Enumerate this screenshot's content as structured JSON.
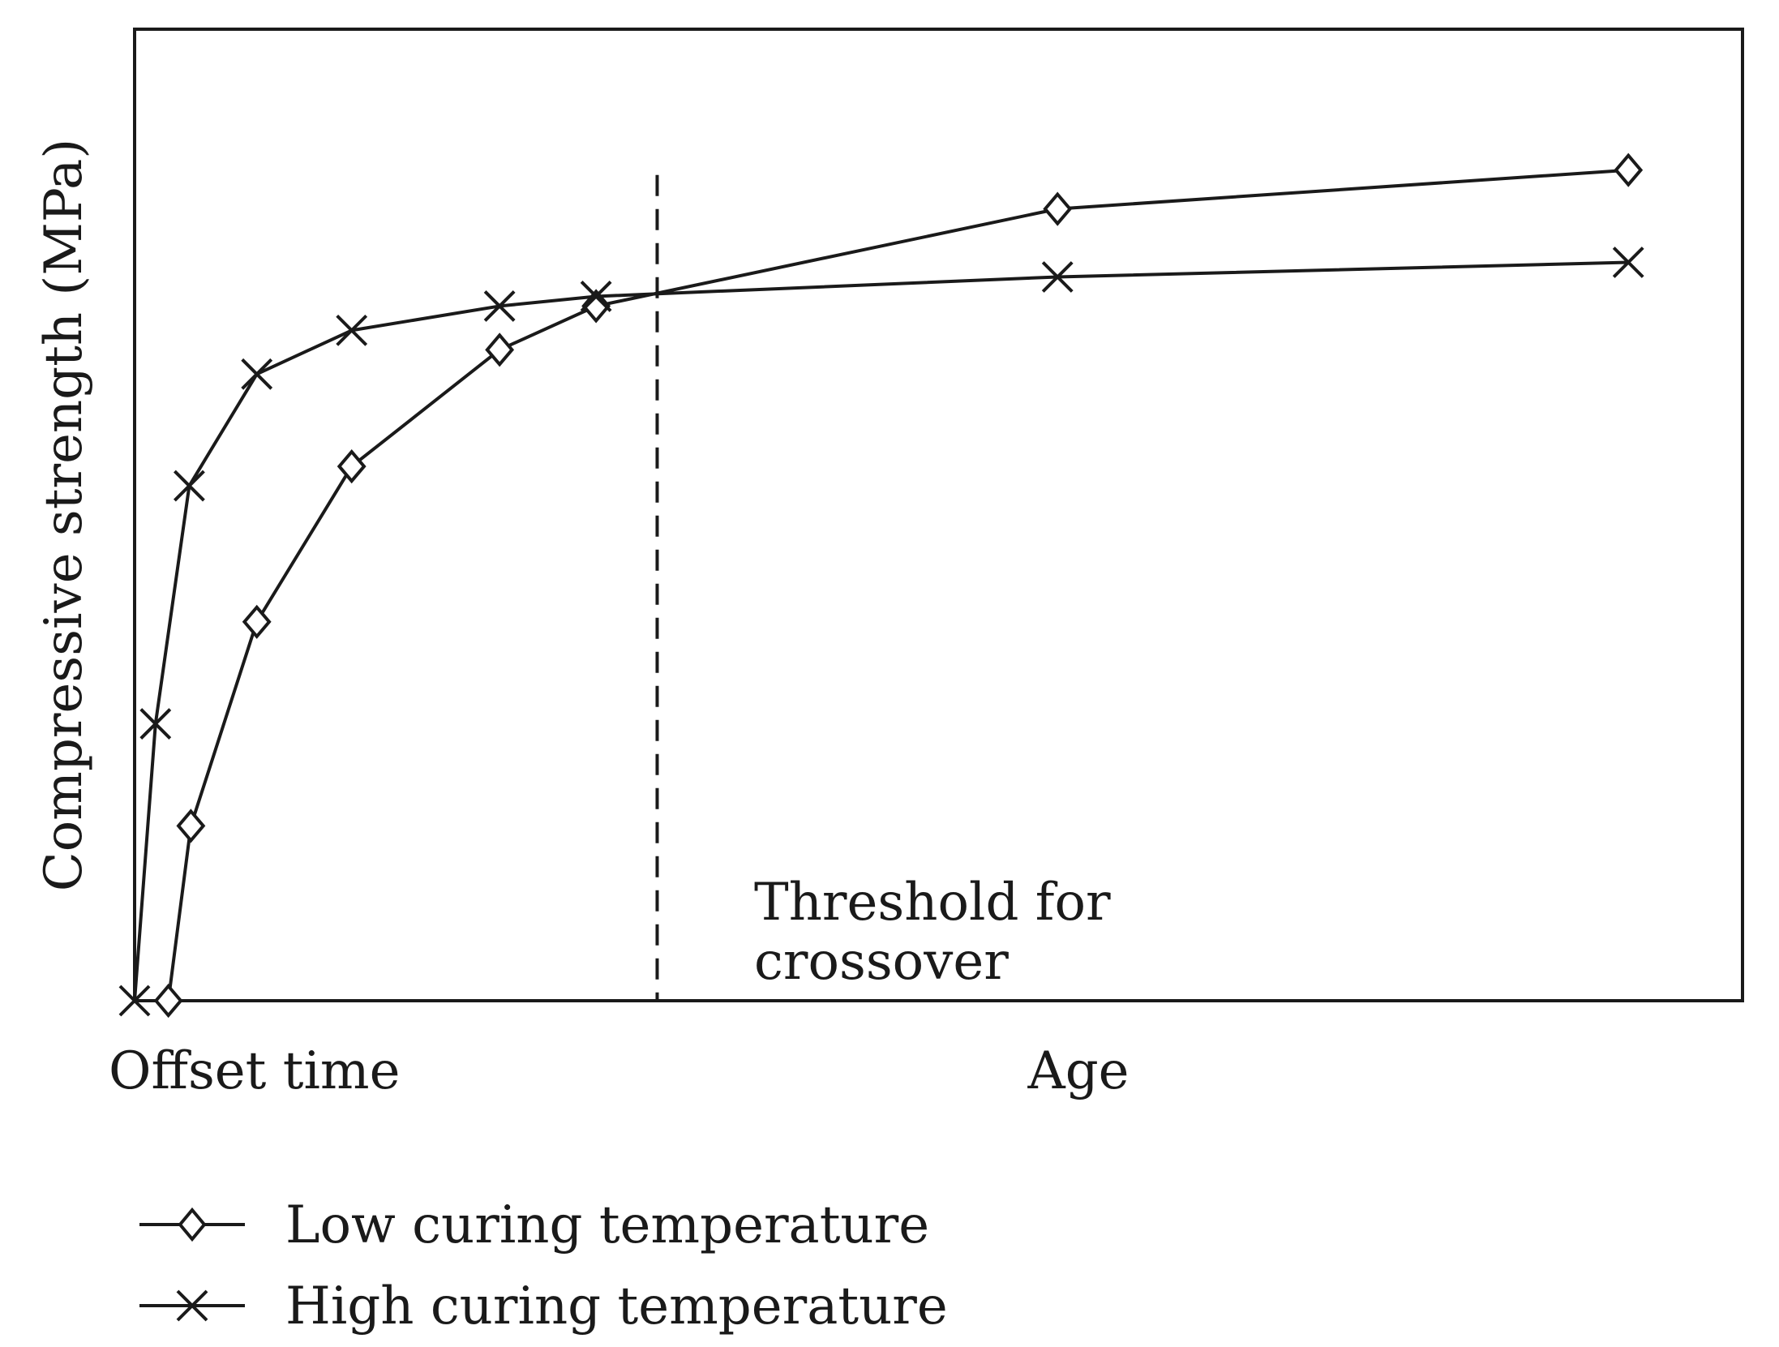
{
  "chart_data": {
    "type": "line",
    "title": "",
    "xlabel": "",
    "ylabel": "Compressive strength (MPa)",
    "x_tick_labels": [
      {
        "label": "Offset time",
        "x": 0
      },
      {
        "label": "Age",
        "x": 57.5
      }
    ],
    "xlim": [
      0,
      100
    ],
    "ylim": [
      0,
      100
    ],
    "grid": false,
    "legend_position": "bottom-left",
    "annotations": [
      {
        "type": "vertical-dashed-line",
        "x": 32.5,
        "y_range": [
          0,
          85
        ],
        "label_line1": "Threshold for",
        "label_line2": "crossover"
      }
    ],
    "series": [
      {
        "name": "Low curing temperature",
        "marker": "diamond",
        "points": [
          {
            "x": 2.1,
            "y": 0
          },
          {
            "x": 3.5,
            "y": 18
          },
          {
            "x": 7.6,
            "y": 39
          },
          {
            "x": 13.5,
            "y": 55
          },
          {
            "x": 22.7,
            "y": 67
          },
          {
            "x": 28.7,
            "y": 71.5
          },
          {
            "x": 57.4,
            "y": 81.5
          },
          {
            "x": 92.9,
            "y": 85.5
          }
        ]
      },
      {
        "name": "High curing temperature",
        "marker": "x",
        "points": [
          {
            "x": 0,
            "y": 0
          },
          {
            "x": 1.3,
            "y": 28.5
          },
          {
            "x": 3.4,
            "y": 53
          },
          {
            "x": 7.6,
            "y": 64.5
          },
          {
            "x": 13.5,
            "y": 69
          },
          {
            "x": 22.7,
            "y": 71.5
          },
          {
            "x": 28.7,
            "y": 72.5
          },
          {
            "x": 57.4,
            "y": 74.5
          },
          {
            "x": 92.9,
            "y": 76
          }
        ]
      }
    ]
  },
  "legend": {
    "items": [
      {
        "label": "Low curing temperature",
        "marker": "diamond"
      },
      {
        "label": "High curing temperature",
        "marker": "x"
      }
    ]
  }
}
